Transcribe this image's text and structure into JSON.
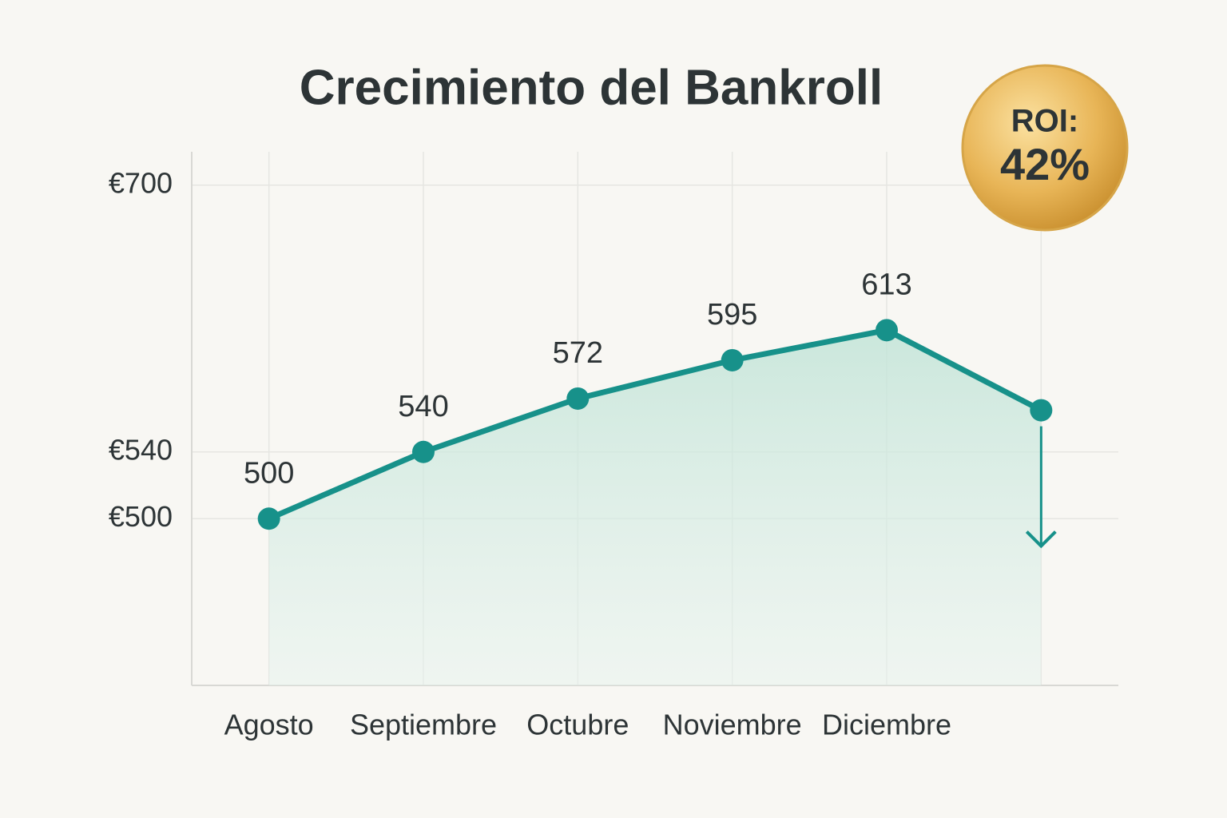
{
  "chart_data": {
    "type": "line",
    "title": "Crecimiento del Bankroll",
    "categories": [
      "Agosto",
      "Septiembre",
      "Octubre",
      "Noviembre",
      "Diciembre",
      null
    ],
    "values": [
      500,
      540,
      572,
      595,
      613,
      565
    ],
    "value_labels": [
      "500",
      "540",
      "572",
      "595",
      "613",
      null
    ],
    "color": "#17918a",
    "ylim": [
      400,
      720
    ],
    "yticks": [
      {
        "value": 500,
        "label": "€500"
      },
      {
        "value": 540,
        "label": "€540"
      },
      {
        "value": 700,
        "label": "€700"
      }
    ],
    "grid": true,
    "badge": {
      "label": "ROI:",
      "value": "42%"
    }
  }
}
